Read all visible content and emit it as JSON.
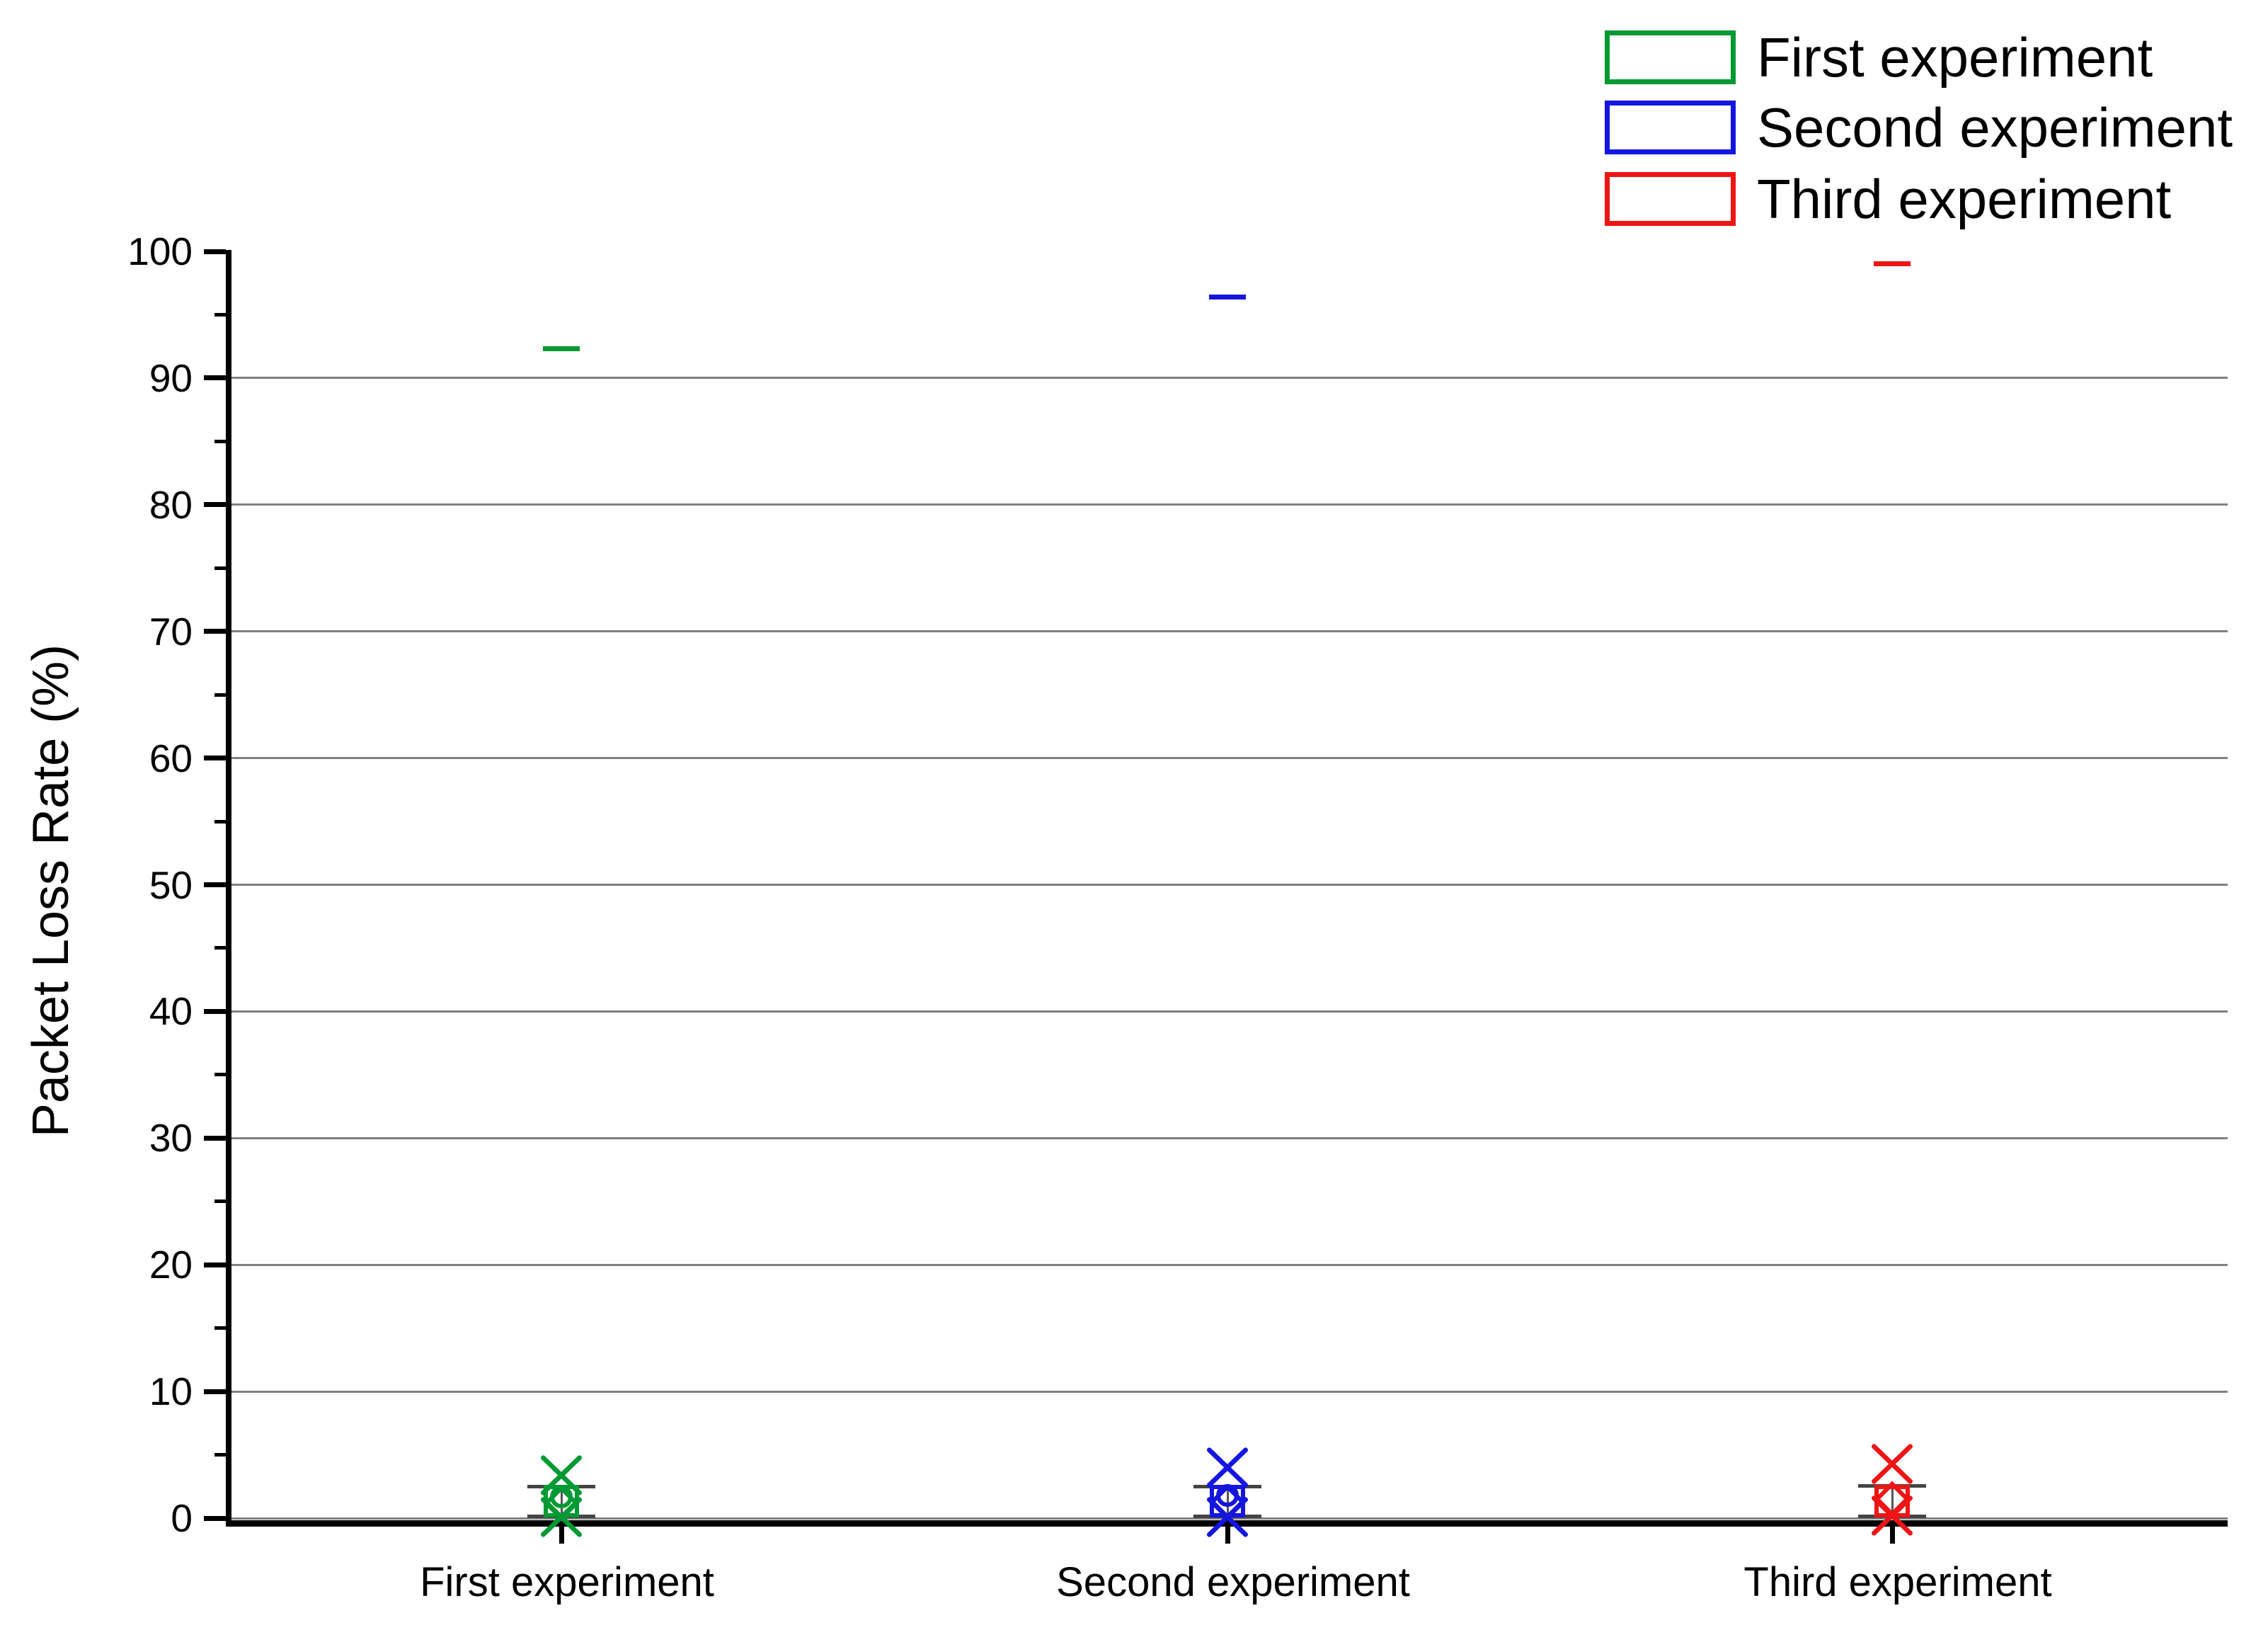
{
  "chart_data": {
    "type": "box",
    "title": "",
    "xlabel": "",
    "ylabel": "Packet Loss Rate (%)",
    "ylim": [
      0,
      100
    ],
    "y_major_step": 10,
    "y_minor_step": 5,
    "grid": "horizontal-major",
    "legend_position": "top-right",
    "y_tick_labels": [
      "100",
      "90",
      "80",
      "70",
      "60",
      "50",
      "40",
      "30",
      "20",
      "10",
      "0"
    ],
    "categories": [
      "First experiment",
      "Second experiment",
      "Third experiment"
    ],
    "series": [
      {
        "name": "First experiment",
        "color": "#009933",
        "max": 92.3,
        "p99": 3.4,
        "whisker_top": 2.5,
        "box_top": 2.65,
        "mean_circle": 1.7,
        "median_diamond": 1.2,
        "box_bottom": 0.05,
        "whisker_bottom": 0.12,
        "p1": 0.1,
        "min": 0
      },
      {
        "name": "Second experiment",
        "color": "#1515e0",
        "max": 96.4,
        "p99": 4.0,
        "whisker_top": 2.5,
        "box_top": 2.65,
        "mean_circle": 1.8,
        "median_diamond": 1.3,
        "box_bottom": 0.05,
        "whisker_bottom": 0.12,
        "p1": 0.1,
        "min": 0
      },
      {
        "name": "Third experiment",
        "color": "#ee1515",
        "max": 99.0,
        "p99": 4.3,
        "whisker_top": 2.55,
        "box_top": 2.65,
        "mean_circle": null,
        "median_diamond": 1.5,
        "box_bottom": 0.05,
        "whisker_bottom": 0.12,
        "p1": 0.2,
        "min": 0
      }
    ]
  },
  "legend": {
    "items": [
      {
        "label": "First experiment",
        "color": "#009933"
      },
      {
        "label": "Second experiment",
        "color": "#1515e0"
      },
      {
        "label": "Third experiment",
        "color": "#ee1515"
      }
    ]
  },
  "colors": {
    "grid": "#808080",
    "whisker": "#444444",
    "axis": "#000000",
    "background": "#ffffff"
  }
}
